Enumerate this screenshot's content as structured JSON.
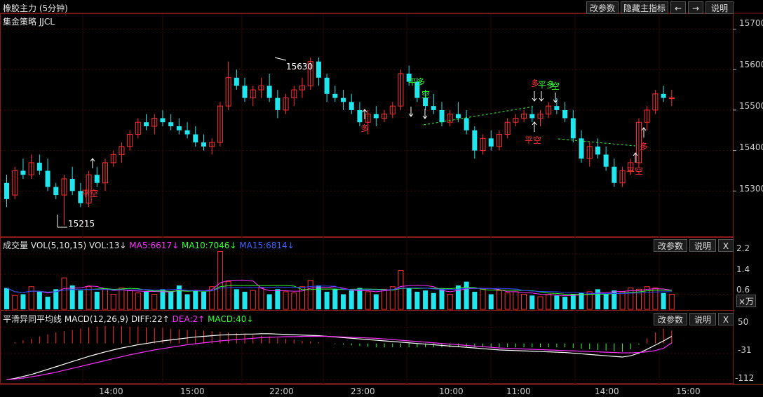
{
  "header": {
    "title": "橡胶主力 (5分钟)",
    "strategy": "集金策略 JJCL",
    "buttons": [
      "改参数",
      "隐藏主指标",
      "←",
      "→",
      "说明"
    ]
  },
  "price_panel": {
    "y_ticks": [
      "15700",
      "15600",
      "15500",
      "15400",
      "15300"
    ],
    "high_label": "15630",
    "low_label": "15215",
    "signals": [
      {
        "text": "平空",
        "color": "#ff3030"
      },
      {
        "text": "平多",
        "color": "#30ff30"
      },
      {
        "text": "空",
        "color": "#30ff30"
      },
      {
        "text": "多",
        "color": "#ff3030"
      },
      {
        "text": "多",
        "color": "#ff3030"
      },
      {
        "text": "平多",
        "color": "#30ff30"
      },
      {
        "text": "空",
        "color": "#30ff30"
      },
      {
        "text": "平空",
        "color": "#ff3030"
      },
      {
        "text": "多",
        "color": "#ff3030"
      },
      {
        "text": "平空",
        "color": "#ff3030"
      }
    ]
  },
  "volume_panel": {
    "name": "成交量",
    "indicator": "VOL(5,10,15)",
    "vol": "VOL:13↓",
    "ma5": "MA5:6617↓",
    "ma10": "MA10:7046↓",
    "ma15": "MA15:6814↓",
    "y_ticks": [
      "2.2",
      "1.4",
      "0.6"
    ],
    "unit": "×万",
    "buttons": [
      "改参数",
      "说明",
      "X"
    ]
  },
  "macd_panel": {
    "name": "平滑异同平均线",
    "indicator": "MACD(12,26,9)",
    "diff": "DIFF:22↑",
    "dea": "DEA:2↑",
    "macd": "MACD:40↓",
    "y_ticks": [
      "50",
      "-31",
      "-112"
    ],
    "buttons": [
      "改参数",
      "说明",
      "X"
    ]
  },
  "time_axis": [
    "14:00",
    "15:00",
    "22:00",
    "23:00",
    "10:00",
    "11:00",
    "14:00",
    "15:00"
  ],
  "colors": {
    "up": "#ff3030",
    "down": "#22e6ee",
    "ma5": "#ff30ff",
    "ma10": "#30ff30",
    "ma15": "#3040ff",
    "grid": "#8b1a1a"
  },
  "chart_data": {
    "type": "candlestick",
    "y_range": [
      15200,
      15720
    ],
    "candles": [
      [
        15320,
        15340,
        15260,
        15280
      ],
      [
        15290,
        15360,
        15280,
        15350
      ],
      [
        15350,
        15380,
        15330,
        15340
      ],
      [
        15340,
        15390,
        15330,
        15370
      ],
      [
        15370,
        15390,
        15340,
        15350
      ],
      [
        15350,
        15380,
        15300,
        15310
      ],
      [
        15310,
        15320,
        15280,
        15290
      ],
      [
        15290,
        15340,
        15215,
        15330
      ],
      [
        15330,
        15360,
        15290,
        15300
      ],
      [
        15300,
        15320,
        15260,
        15270
      ],
      [
        15270,
        15350,
        15260,
        15340
      ],
      [
        15340,
        15360,
        15310,
        15320
      ],
      [
        15320,
        15380,
        15300,
        15370
      ],
      [
        15370,
        15400,
        15360,
        15390
      ],
      [
        15390,
        15420,
        15370,
        15410
      ],
      [
        15410,
        15450,
        15400,
        15440
      ],
      [
        15440,
        15480,
        15430,
        15470
      ],
      [
        15470,
        15490,
        15450,
        15460
      ],
      [
        15460,
        15490,
        15440,
        15480
      ],
      [
        15480,
        15500,
        15460,
        15470
      ],
      [
        15470,
        15490,
        15450,
        15460
      ],
      [
        15460,
        15480,
        15440,
        15450
      ],
      [
        15450,
        15470,
        15430,
        15440
      ],
      [
        15440,
        15460,
        15410,
        15420
      ],
      [
        15420,
        15440,
        15400,
        15410
      ],
      [
        15410,
        15430,
        15390,
        15420
      ],
      [
        15420,
        15520,
        15410,
        15510
      ],
      [
        15510,
        15620,
        15500,
        15580
      ],
      [
        15580,
        15600,
        15550,
        15560
      ],
      [
        15560,
        15580,
        15520,
        15530
      ],
      [
        15530,
        15560,
        15510,
        15550
      ],
      [
        15550,
        15580,
        15530,
        15560
      ],
      [
        15560,
        15590,
        15520,
        15530
      ],
      [
        15530,
        15550,
        15480,
        15500
      ],
      [
        15500,
        15540,
        15490,
        15530
      ],
      [
        15530,
        15560,
        15510,
        15550
      ],
      [
        15550,
        15580,
        15530,
        15560
      ],
      [
        15560,
        15630,
        15550,
        15620
      ],
      [
        15620,
        15630,
        15560,
        15580
      ],
      [
        15580,
        15590,
        15520,
        15540
      ],
      [
        15540,
        15560,
        15520,
        15530
      ],
      [
        15530,
        15550,
        15500,
        15520
      ],
      [
        15520,
        15540,
        15490,
        15500
      ],
      [
        15500,
        15520,
        15460,
        15470
      ],
      [
        15470,
        15500,
        15440,
        15490
      ],
      [
        15490,
        15510,
        15460,
        15480
      ],
      [
        15480,
        15500,
        15470,
        15490
      ],
      [
        15490,
        15520,
        15480,
        15510
      ],
      [
        15510,
        15600,
        15500,
        15590
      ],
      [
        15590,
        15610,
        15560,
        15570
      ],
      [
        15570,
        15580,
        15520,
        15530
      ],
      [
        15530,
        15550,
        15500,
        15510
      ],
      [
        15510,
        15540,
        15490,
        15500
      ],
      [
        15500,
        15520,
        15460,
        15470
      ],
      [
        15470,
        15500,
        15460,
        15490
      ],
      [
        15490,
        15520,
        15470,
        15480
      ],
      [
        15480,
        15500,
        15440,
        15450
      ],
      [
        15450,
        15460,
        15380,
        15400
      ],
      [
        15400,
        15440,
        15390,
        15430
      ],
      [
        15430,
        15450,
        15400,
        15410
      ],
      [
        15410,
        15450,
        15400,
        15440
      ],
      [
        15440,
        15480,
        15430,
        15470
      ],
      [
        15470,
        15490,
        15460,
        15480
      ],
      [
        15480,
        15500,
        15470,
        15490
      ],
      [
        15490,
        15510,
        15470,
        15480
      ],
      [
        15480,
        15500,
        15460,
        15490
      ],
      [
        15490,
        15520,
        15480,
        15510
      ],
      [
        15510,
        15530,
        15490,
        15500
      ],
      [
        15500,
        15520,
        15470,
        15480
      ],
      [
        15480,
        15500,
        15420,
        15430
      ],
      [
        15430,
        15450,
        15370,
        15380
      ],
      [
        15380,
        15420,
        15360,
        15410
      ],
      [
        15410,
        15430,
        15380,
        15390
      ],
      [
        15390,
        15410,
        15350,
        15360
      ],
      [
        15360,
        15380,
        15310,
        15320
      ],
      [
        15320,
        15360,
        15310,
        15350
      ],
      [
        15350,
        15380,
        15340,
        15370
      ],
      [
        15370,
        15480,
        15360,
        15470
      ],
      [
        15470,
        15510,
        15450,
        15500
      ],
      [
        15500,
        15550,
        15490,
        15540
      ],
      [
        15540,
        15560,
        15520,
        15530
      ],
      [
        15530,
        15550,
        15510,
        15530
      ]
    ],
    "volume": [
      0.85,
      0.55,
      0.6,
      0.9,
      0.7,
      0.5,
      0.8,
      1.25,
      0.95,
      0.75,
      0.9,
      0.7,
      0.8,
      0.6,
      0.85,
      0.75,
      0.65,
      0.7,
      0.6,
      0.8,
      0.7,
      0.95,
      0.6,
      0.75,
      0.7,
      0.9,
      2.3,
      1.1,
      0.8,
      0.7,
      0.75,
      0.85,
      0.6,
      0.8,
      0.7,
      0.65,
      0.9,
      1.15,
      0.95,
      0.7,
      0.8,
      0.6,
      0.75,
      0.85,
      0.7,
      0.6,
      0.8,
      0.9,
      1.55,
      0.85,
      0.7,
      0.75,
      0.65,
      0.8,
      0.6,
      0.95,
      1.1,
      0.7,
      0.8,
      0.6,
      0.75,
      0.65,
      0.7,
      0.6,
      0.55,
      0.5,
      0.6,
      0.55,
      0.5,
      0.6,
      0.65,
      0.7,
      0.8,
      0.6,
      0.75,
      0.7,
      0.85,
      0.8,
      0.9,
      0.85,
      0.65,
      0.6
    ],
    "macd": {
      "diff": [
        -112,
        -108,
        -102,
        -96,
        -88,
        -80,
        -72,
        -64,
        -56,
        -48,
        -40,
        -33,
        -26,
        -20,
        -14,
        -9,
        -4,
        0,
        4,
        8,
        11,
        14,
        17,
        20,
        22,
        24,
        26,
        27,
        28,
        29,
        29,
        30,
        30,
        29,
        28,
        27,
        26,
        25,
        24,
        22,
        20,
        18,
        16,
        14,
        12,
        10,
        8,
        6,
        4,
        2,
        0,
        -2,
        -4,
        -6,
        -8,
        -10,
        -12,
        -14,
        -16,
        -18,
        -20,
        -21,
        -22,
        -23,
        -24,
        -25,
        -26,
        -27,
        -28,
        -30,
        -32,
        -34,
        -36,
        -38,
        -40,
        -42,
        -38,
        -30,
        -18,
        -5,
        8,
        22
      ],
      "dea": [
        -112,
        -110,
        -107,
        -103,
        -99,
        -94,
        -89,
        -83,
        -77,
        -71,
        -65,
        -59,
        -53,
        -47,
        -41,
        -35,
        -30,
        -25,
        -20,
        -16,
        -12,
        -8,
        -4,
        -1,
        2,
        5,
        8,
        10,
        12,
        14,
        16,
        18,
        19,
        20,
        21,
        21,
        22,
        22,
        22,
        22,
        21,
        20,
        19,
        18,
        17,
        16,
        14,
        12,
        10,
        8,
        6,
        4,
        2,
        0,
        -2,
        -4,
        -6,
        -8,
        -10,
        -12,
        -14,
        -15,
        -16,
        -17,
        -18,
        -19,
        -20,
        -21,
        -22,
        -23,
        -24,
        -25,
        -26,
        -27,
        -28,
        -29,
        -29,
        -28,
        -26,
        -22,
        -15,
        2
      ]
    }
  }
}
